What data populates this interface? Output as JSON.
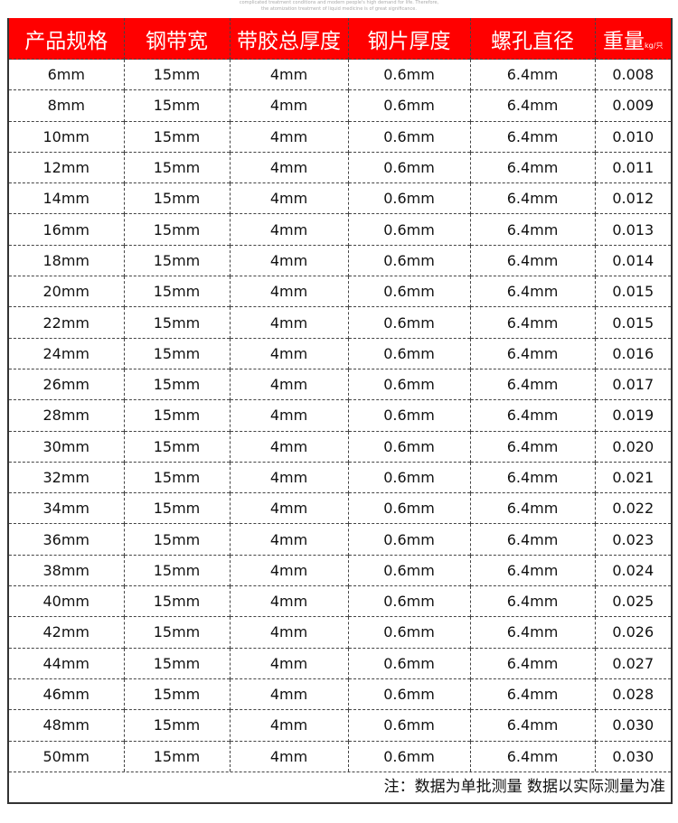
{
  "faint_text": [
    "complicated treatment conditions and modern people's high demand for life. Therefore,",
    "the atomization treatment of liquid medicine is of great significance."
  ],
  "header": {
    "columns": [
      "产品规格",
      "钢带宽",
      "带胶总厚度",
      "钢片厚度",
      "螺孔直径",
      "重量"
    ],
    "weight_unit": "kg/只",
    "color": "#ff0000"
  },
  "rows": [
    [
      "6mm",
      "15mm",
      "4mm",
      "0.6mm",
      "6.4mm",
      "0.008"
    ],
    [
      "8mm",
      "15mm",
      "4mm",
      "0.6mm",
      "6.4mm",
      "0.009"
    ],
    [
      "10mm",
      "15mm",
      "4mm",
      "0.6mm",
      "6.4mm",
      "0.010"
    ],
    [
      "12mm",
      "15mm",
      "4mm",
      "0.6mm",
      "6.4mm",
      "0.011"
    ],
    [
      "14mm",
      "15mm",
      "4mm",
      "0.6mm",
      "6.4mm",
      "0.012"
    ],
    [
      "16mm",
      "15mm",
      "4mm",
      "0.6mm",
      "6.4mm",
      "0.013"
    ],
    [
      "18mm",
      "15mm",
      "4mm",
      "0.6mm",
      "6.4mm",
      "0.014"
    ],
    [
      "20mm",
      "15mm",
      "4mm",
      "0.6mm",
      "6.4mm",
      "0.015"
    ],
    [
      "22mm",
      "15mm",
      "4mm",
      "0.6mm",
      "6.4mm",
      "0.015"
    ],
    [
      "24mm",
      "15mm",
      "4mm",
      "0.6mm",
      "6.4mm",
      "0.016"
    ],
    [
      "26mm",
      "15mm",
      "4mm",
      "0.6mm",
      "6.4mm",
      "0.017"
    ],
    [
      "28mm",
      "15mm",
      "4mm",
      "0.6mm",
      "6.4mm",
      "0.019"
    ],
    [
      "30mm",
      "15mm",
      "4mm",
      "0.6mm",
      "6.4mm",
      "0.020"
    ],
    [
      "32mm",
      "15mm",
      "4mm",
      "0.6mm",
      "6.4mm",
      "0.021"
    ],
    [
      "34mm",
      "15mm",
      "4mm",
      "0.6mm",
      "6.4mm",
      "0.022"
    ],
    [
      "36mm",
      "15mm",
      "4mm",
      "0.6mm",
      "6.4mm",
      "0.023"
    ],
    [
      "38mm",
      "15mm",
      "4mm",
      "0.6mm",
      "6.4mm",
      "0.024"
    ],
    [
      "40mm",
      "15mm",
      "4mm",
      "0.6mm",
      "6.4mm",
      "0.025"
    ],
    [
      "42mm",
      "15mm",
      "4mm",
      "0.6mm",
      "6.4mm",
      "0.026"
    ],
    [
      "44mm",
      "15mm",
      "4mm",
      "0.6mm",
      "6.4mm",
      "0.027"
    ],
    [
      "46mm",
      "15mm",
      "4mm",
      "0.6mm",
      "6.4mm",
      "0.028"
    ],
    [
      "48mm",
      "15mm",
      "4mm",
      "0.6mm",
      "6.4mm",
      "0.030"
    ],
    [
      "50mm",
      "15mm",
      "4mm",
      "0.6mm",
      "6.4mm",
      "0.030"
    ]
  ],
  "note": "注：数据为单批测量 数据以实际测量为准"
}
